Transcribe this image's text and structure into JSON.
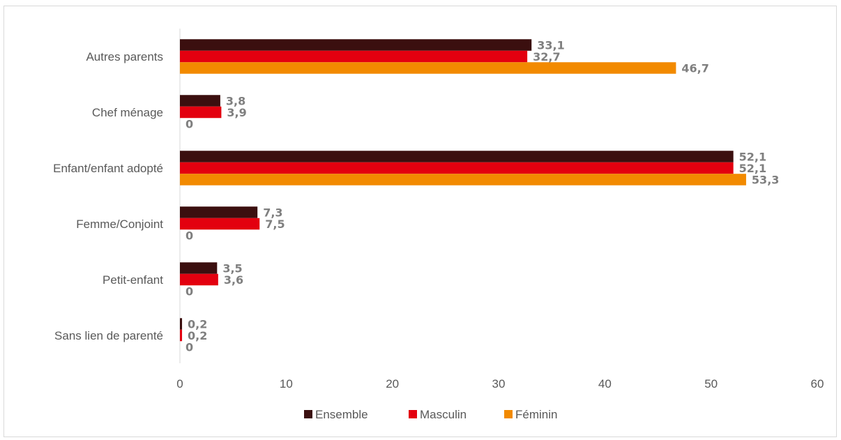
{
  "chart_data": {
    "type": "bar",
    "orientation": "horizontal",
    "categories": [
      "Autres parents",
      "Chef ménage",
      "Enfant/enfant adopté",
      "Femme/Conjoint",
      "Petit-enfant",
      "Sans lien de parenté"
    ],
    "series": [
      {
        "name": "Ensemble",
        "color": "#3b0f0f",
        "values": [
          33.1,
          3.8,
          52.1,
          7.3,
          3.5,
          0.2
        ],
        "labels": [
          "33,1",
          "3,8",
          "52,1",
          "7,3",
          "3,5",
          "0,2"
        ]
      },
      {
        "name": "Masculin",
        "color": "#e3000f",
        "values": [
          32.7,
          3.9,
          52.1,
          7.5,
          3.6,
          0.2
        ],
        "labels": [
          "32,7",
          "3,9",
          "52,1",
          "7,5",
          "3,6",
          "0,2"
        ]
      },
      {
        "name": "Féminin",
        "color": "#f28a00",
        "values": [
          46.7,
          0,
          53.3,
          0,
          0,
          0
        ],
        "labels": [
          "46,7",
          "0",
          "53,3",
          "0",
          "0",
          "0"
        ]
      }
    ],
    "xlim": [
      0,
      60
    ],
    "xticks": [
      0,
      10,
      20,
      30,
      40,
      50,
      60
    ],
    "title": "",
    "xlabel": "",
    "ylabel": "",
    "grid": false,
    "legend_position": "bottom"
  }
}
